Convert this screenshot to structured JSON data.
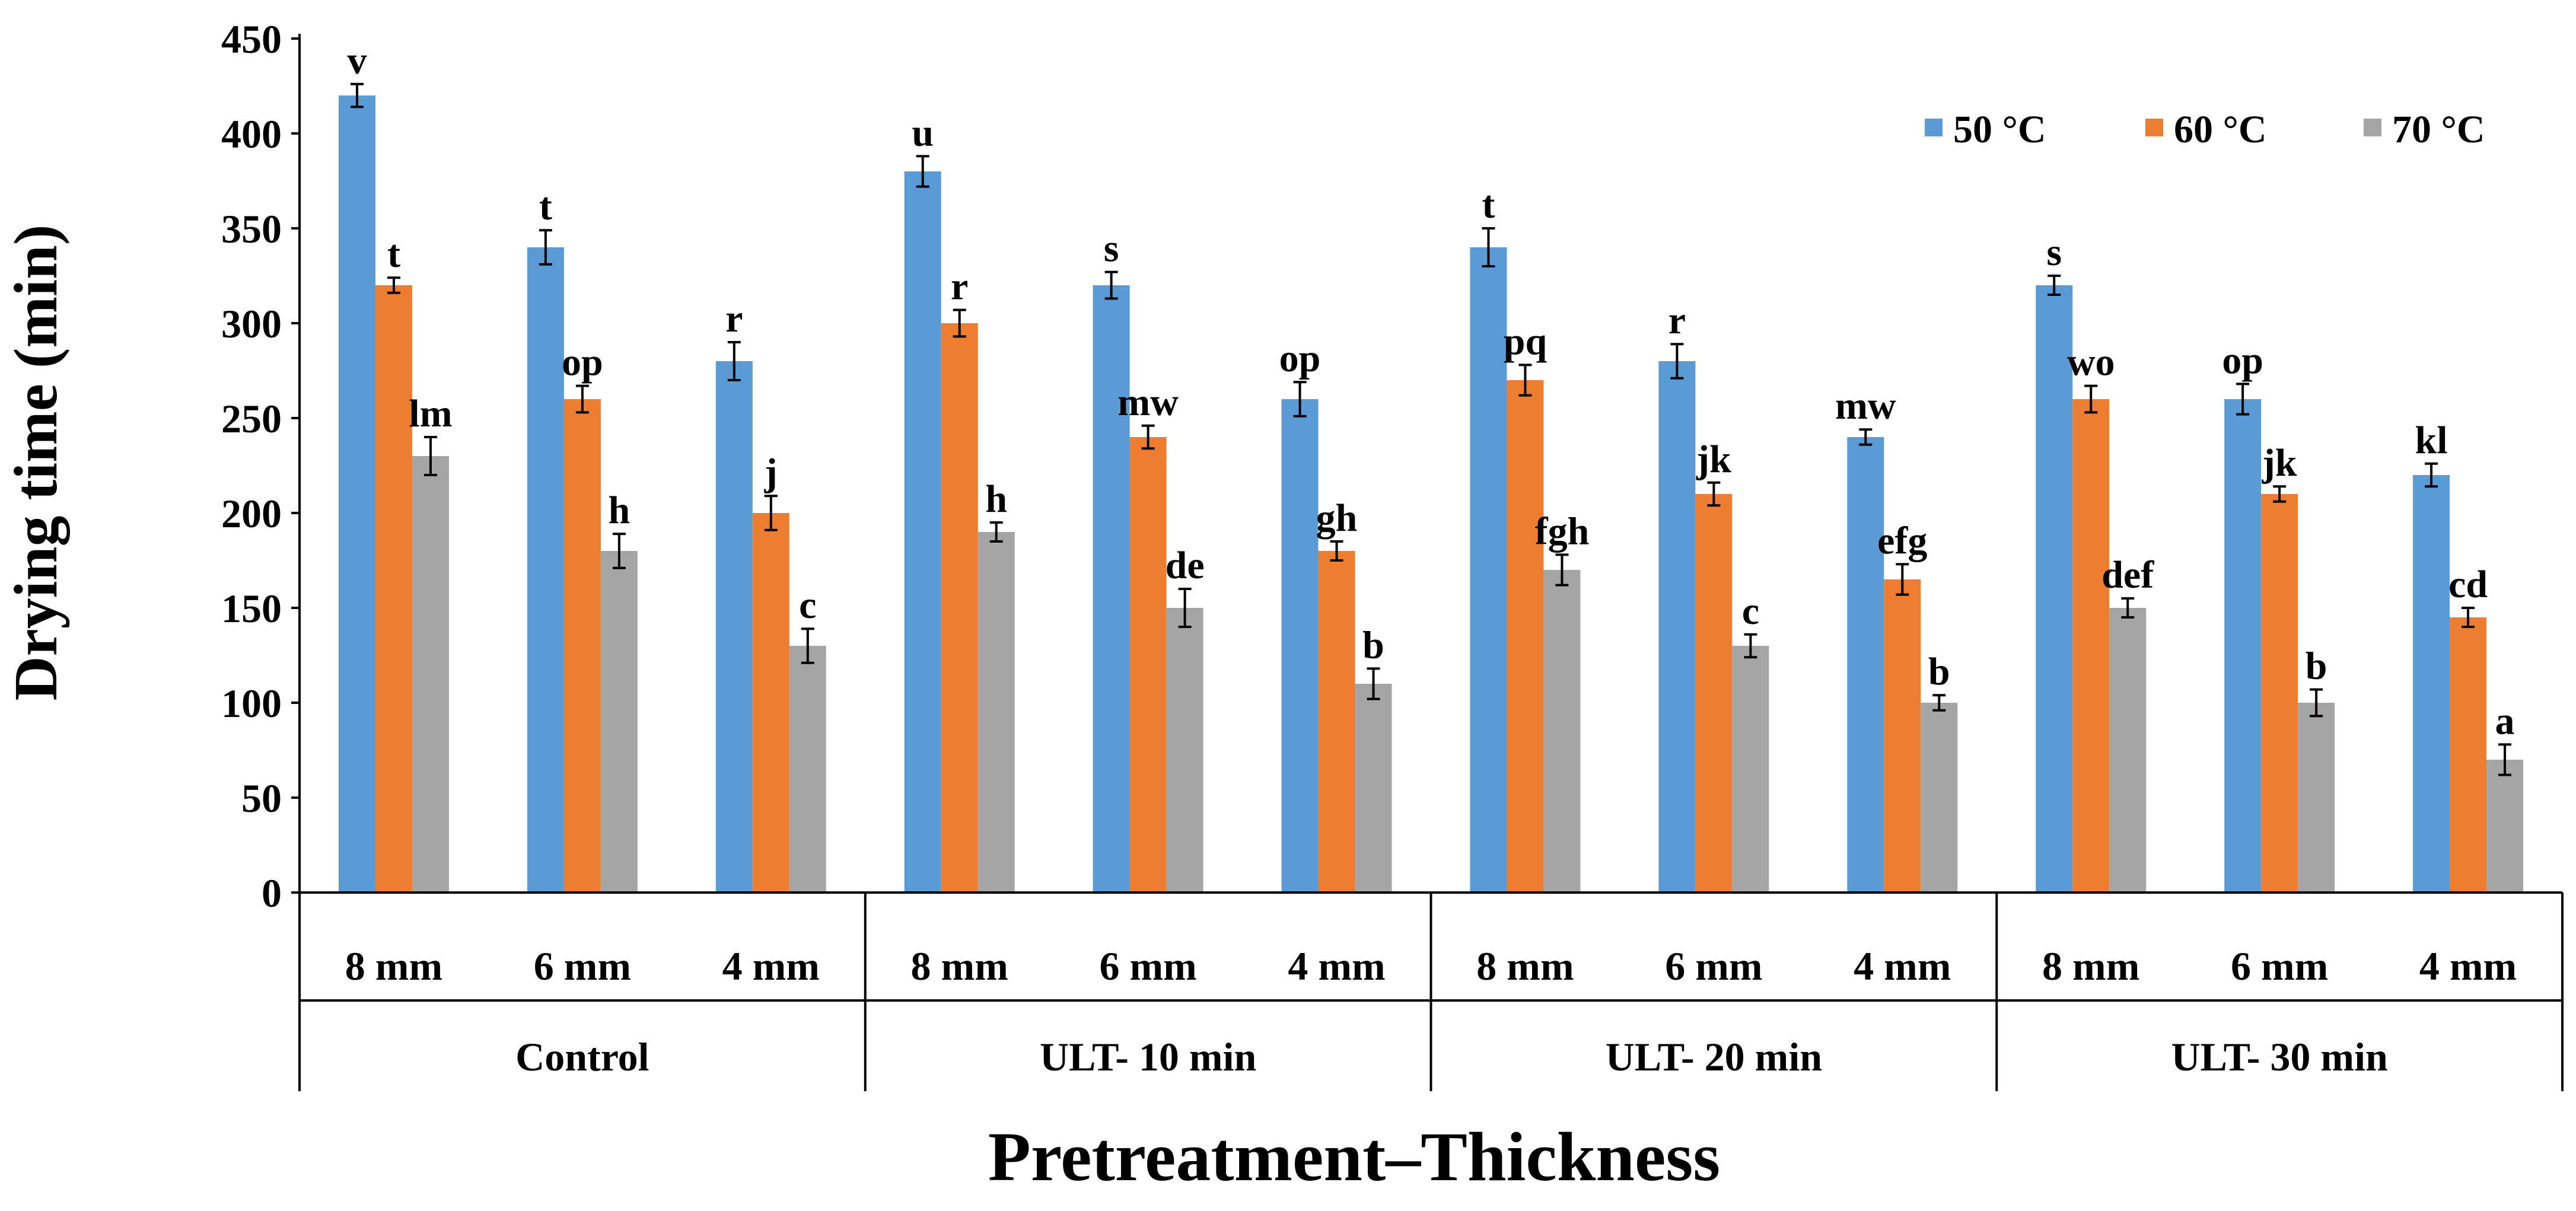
{
  "chart_data": {
    "type": "bar",
    "title": "",
    "ylabel": "Drying time (min)",
    "xlabel": "Pretreatment–Thickness",
    "ylim": [
      0,
      450
    ],
    "yticks": [
      0,
      50,
      100,
      150,
      200,
      250,
      300,
      350,
      400,
      450
    ],
    "groups": [
      "Control",
      "ULT- 10 min",
      "ULT- 20 min",
      "ULT- 30 min"
    ],
    "categories": [
      "8 mm",
      "6 mm",
      "4 mm",
      "8 mm",
      "6 mm",
      "4 mm",
      "8 mm",
      "6 mm",
      "4 mm",
      "8 mm",
      "6 mm",
      "4 mm"
    ],
    "series": [
      {
        "name": "50 °C",
        "color": "#5B9BD5",
        "values": [
          420,
          340,
          280,
          380,
          320,
          260,
          340,
          280,
          240,
          320,
          260,
          220
        ],
        "errors": [
          6,
          9,
          10,
          8,
          7,
          9,
          10,
          9,
          4,
          5,
          8,
          6
        ],
        "labels": [
          "v",
          "t",
          "r",
          "u",
          "s",
          "op",
          "t",
          "r",
          "mw",
          "s",
          "op",
          "kl"
        ]
      },
      {
        "name": "60 °C",
        "color": "#ED7D31",
        "values": [
          320,
          260,
          200,
          300,
          240,
          180,
          270,
          210,
          165,
          260,
          210,
          145
        ],
        "errors": [
          4,
          7,
          9,
          7,
          6,
          5,
          8,
          6,
          8,
          7,
          4,
          5
        ],
        "labels": [
          "t",
          "op",
          "j",
          "r",
          "mw",
          "gh",
          "pq",
          "jk",
          "efg",
          "wo",
          "jk",
          "cd"
        ]
      },
      {
        "name": "70 °C",
        "color": "#A5A5A5",
        "values": [
          230,
          180,
          130,
          190,
          150,
          110,
          170,
          130,
          100,
          150,
          100,
          70
        ],
        "errors": [
          10,
          9,
          9,
          5,
          10,
          8,
          8,
          6,
          4,
          5,
          7,
          8
        ],
        "labels": [
          "lm",
          "h",
          "c",
          "h",
          "de",
          "b",
          "fgh",
          "c",
          "b",
          "def",
          "b",
          "a"
        ]
      }
    ],
    "legend_position": "top-right",
    "grid": false
  }
}
